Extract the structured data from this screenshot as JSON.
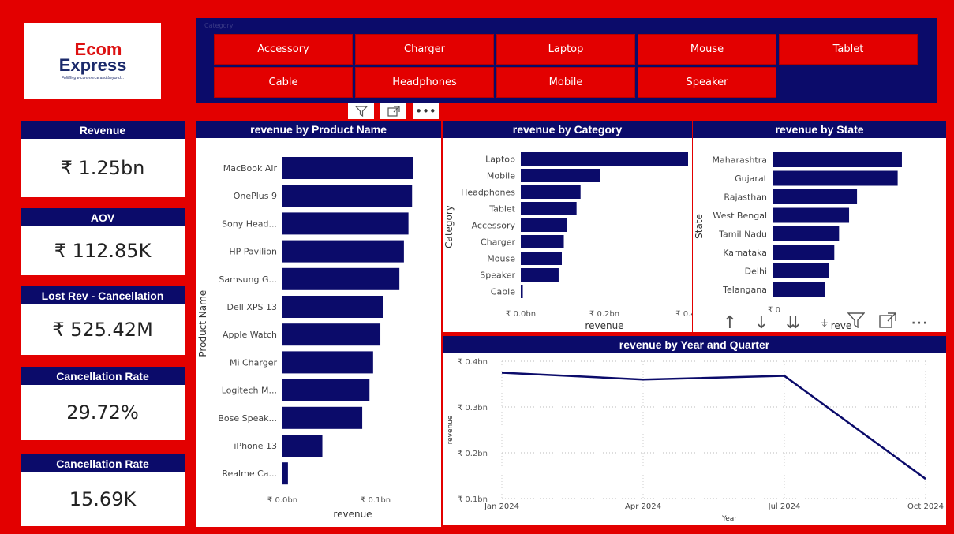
{
  "logo": {
    "line1": "Ecom",
    "line2": "Express",
    "tagline": "Fulfilling e-commerce and beyond..."
  },
  "slicer": {
    "title": "Category",
    "buttons": [
      "Accessory",
      "Charger",
      "Laptop",
      "Mouse",
      "Tablet",
      "Cable",
      "Headphones",
      "Mobile",
      "Speaker"
    ]
  },
  "header_icons": {
    "filter": "filter-icon",
    "focus": "focus-mode-icon",
    "more": "more-options-icon",
    "more_glyph": "•••"
  },
  "kpis": [
    {
      "title": "Revenue",
      "value": "₹ 1.25bn"
    },
    {
      "title": "AOV",
      "value": "₹ 112.85K"
    },
    {
      "title": "Lost Rev - Cancellation",
      "value": "₹ 525.42M"
    },
    {
      "title": "Cancellation Rate",
      "value": "29.72%"
    },
    {
      "title": "Cancellation Rate",
      "value": "15.69K"
    }
  ],
  "toolbar": {
    "icons": [
      "arrow-up-icon",
      "arrow-down-icon",
      "drill-down-icon",
      "expand-hierarchy-icon",
      "filter-icon",
      "focus-mode-icon",
      "more-options-icon"
    ]
  },
  "colors": {
    "background": "#e30000",
    "navy": "#0b0b6a",
    "bar": "#0b0b6a",
    "white": "#ffffff"
  },
  "chart_data": [
    {
      "type": "bar",
      "orientation": "horizontal",
      "title": "revenue by Product Name",
      "ylabel": "Product Name",
      "xlabel": "revenue",
      "categories": [
        "MacBook Air",
        "OnePlus 9",
        "Sony Head...",
        "HP Pavilion",
        "Samsung G...",
        "Dell XPS 13",
        "Apple Watch",
        "Mi Charger",
        "Logitech M...",
        "Bose Speak...",
        "iPhone 13",
        "Realme Ca..."
      ],
      "values": [
        0.144,
        0.143,
        0.139,
        0.134,
        0.129,
        0.111,
        0.108,
        0.1,
        0.096,
        0.088,
        0.044,
        0.006
      ],
      "x_ticks": [
        "₹ 0.0bn",
        "₹ 0.1bn"
      ],
      "xlim": [
        0,
        0.155
      ]
    },
    {
      "type": "bar",
      "orientation": "horizontal",
      "title": "revenue by Category",
      "ylabel": "Category",
      "xlabel": "revenue",
      "categories": [
        "Laptop",
        "Mobile",
        "Headphones",
        "Tablet",
        "Accessory",
        "Charger",
        "Mouse",
        "Speaker",
        "Cable"
      ],
      "values": [
        0.42,
        0.2,
        0.15,
        0.14,
        0.115,
        0.108,
        0.103,
        0.095,
        0.005
      ],
      "x_ticks": [
        "₹ 0.0bn",
        "₹ 0.2bn",
        "₹ 0.4"
      ],
      "xlim": [
        0,
        0.42
      ]
    },
    {
      "type": "bar",
      "orientation": "horizontal",
      "title": "revenue by State",
      "ylabel": "State",
      "xlabel": "reve",
      "categories": [
        "Maharashtra",
        "Gujarat",
        "Rajasthan",
        "West Bengal",
        "Tamil Nadu",
        "Karnataka",
        "Delhi",
        "Telangana"
      ],
      "values": [
        0.245,
        0.237,
        0.16,
        0.145,
        0.126,
        0.117,
        0.107,
        0.099
      ],
      "x_ticks": [
        "₹ 0"
      ],
      "xlim": [
        0,
        0.26
      ]
    },
    {
      "type": "line",
      "title": "revenue by Year and Quarter",
      "xlabel": "Year",
      "ylabel": "revenue",
      "x": [
        "Jan 2024",
        "Apr 2024",
        "Jul 2024",
        "Oct 2024"
      ],
      "values": [
        0.375,
        0.36,
        0.368,
        0.143
      ],
      "y_ticks": [
        "₹ 0.4bn",
        "₹ 0.3bn",
        "₹ 0.2bn",
        "₹ 0.1bn"
      ],
      "ylim": [
        0.1,
        0.4
      ]
    }
  ]
}
